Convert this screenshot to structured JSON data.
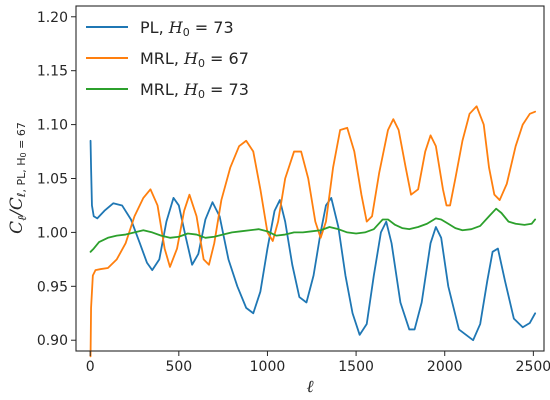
{
  "chart_data": {
    "type": "line",
    "title": "",
    "xlabel": "ℓ",
    "ylabel_main": "C",
    "ylabel_sub_l": "ℓ",
    "ylabel_sub_ref": "ℓ, PL, H",
    "ylabel_sub_ref_idx": "0",
    "ylabel_sub_ref_val": " = 67",
    "xlim": [
      -80,
      2560
    ],
    "ylim": [
      0.89,
      1.21
    ],
    "xticks": [
      0,
      500,
      1000,
      1500,
      2000,
      2500
    ],
    "yticks": [
      0.9,
      0.95,
      1.0,
      1.05,
      1.1,
      1.15,
      1.2
    ],
    "ytick_labels": [
      "0.90",
      "0.95",
      "1.00",
      "1.05",
      "1.10",
      "1.15",
      "1.20"
    ],
    "legend_position": "top-left",
    "grid": false,
    "series": [
      {
        "name_prefix": "PL, ",
        "name_var": "H",
        "name_sub": "0",
        "name_suffix": " = 73",
        "color": "#1f77b4",
        "points": [
          [
            2,
            1.085
          ],
          [
            5,
            1.06
          ],
          [
            10,
            1.025
          ],
          [
            20,
            1.015
          ],
          [
            40,
            1.013
          ],
          [
            80,
            1.02
          ],
          [
            130,
            1.027
          ],
          [
            180,
            1.025
          ],
          [
            230,
            1.012
          ],
          [
            280,
            0.99
          ],
          [
            320,
            0.972
          ],
          [
            350,
            0.965
          ],
          [
            390,
            0.975
          ],
          [
            430,
            1.01
          ],
          [
            470,
            1.032
          ],
          [
            500,
            1.025
          ],
          [
            540,
            0.995
          ],
          [
            575,
            0.97
          ],
          [
            610,
            0.98
          ],
          [
            650,
            1.012
          ],
          [
            690,
            1.028
          ],
          [
            730,
            1.015
          ],
          [
            780,
            0.975
          ],
          [
            830,
            0.95
          ],
          [
            880,
            0.93
          ],
          [
            920,
            0.925
          ],
          [
            960,
            0.945
          ],
          [
            1000,
            0.985
          ],
          [
            1040,
            1.02
          ],
          [
            1070,
            1.03
          ],
          [
            1100,
            1.01
          ],
          [
            1140,
            0.97
          ],
          [
            1180,
            0.94
          ],
          [
            1220,
            0.935
          ],
          [
            1260,
            0.96
          ],
          [
            1300,
            1.0
          ],
          [
            1330,
            1.025
          ],
          [
            1360,
            1.032
          ],
          [
            1400,
            1.005
          ],
          [
            1440,
            0.96
          ],
          [
            1480,
            0.925
          ],
          [
            1520,
            0.905
          ],
          [
            1560,
            0.915
          ],
          [
            1600,
            0.96
          ],
          [
            1640,
            1.0
          ],
          [
            1670,
            1.01
          ],
          [
            1700,
            0.99
          ],
          [
            1750,
            0.935
          ],
          [
            1800,
            0.91
          ],
          [
            1830,
            0.91
          ],
          [
            1870,
            0.935
          ],
          [
            1920,
            0.99
          ],
          [
            1950,
            1.005
          ],
          [
            1980,
            0.995
          ],
          [
            2020,
            0.95
          ],
          [
            2080,
            0.91
          ],
          [
            2120,
            0.905
          ],
          [
            2160,
            0.9
          ],
          [
            2200,
            0.915
          ],
          [
            2240,
            0.955
          ],
          [
            2270,
            0.982
          ],
          [
            2300,
            0.985
          ],
          [
            2340,
            0.955
          ],
          [
            2390,
            0.92
          ],
          [
            2440,
            0.912
          ],
          [
            2480,
            0.916
          ],
          [
            2510,
            0.925
          ]
        ]
      },
      {
        "name_prefix": "MRL, ",
        "name_var": "H",
        "name_sub": "0",
        "name_suffix": " = 67",
        "color": "#ff7f0e",
        "points": [
          [
            2,
            0.885
          ],
          [
            5,
            0.93
          ],
          [
            15,
            0.96
          ],
          [
            30,
            0.965
          ],
          [
            60,
            0.966
          ],
          [
            100,
            0.967
          ],
          [
            150,
            0.975
          ],
          [
            200,
            0.99
          ],
          [
            250,
            1.015
          ],
          [
            300,
            1.032
          ],
          [
            340,
            1.04
          ],
          [
            380,
            1.025
          ],
          [
            420,
            0.985
          ],
          [
            450,
            0.968
          ],
          [
            490,
            0.985
          ],
          [
            530,
            1.02
          ],
          [
            560,
            1.035
          ],
          [
            600,
            1.015
          ],
          [
            640,
            0.975
          ],
          [
            670,
            0.97
          ],
          [
            700,
            0.99
          ],
          [
            740,
            1.03
          ],
          [
            790,
            1.06
          ],
          [
            840,
            1.08
          ],
          [
            880,
            1.085
          ],
          [
            920,
            1.075
          ],
          [
            960,
            1.04
          ],
          [
            1000,
            1.0
          ],
          [
            1030,
            0.992
          ],
          [
            1060,
            1.01
          ],
          [
            1100,
            1.05
          ],
          [
            1150,
            1.075
          ],
          [
            1190,
            1.075
          ],
          [
            1230,
            1.05
          ],
          [
            1270,
            1.01
          ],
          [
            1300,
            0.995
          ],
          [
            1330,
            1.01
          ],
          [
            1370,
            1.06
          ],
          [
            1410,
            1.095
          ],
          [
            1450,
            1.097
          ],
          [
            1490,
            1.075
          ],
          [
            1530,
            1.035
          ],
          [
            1560,
            1.01
          ],
          [
            1590,
            1.015
          ],
          [
            1630,
            1.055
          ],
          [
            1680,
            1.095
          ],
          [
            1710,
            1.105
          ],
          [
            1740,
            1.095
          ],
          [
            1780,
            1.06
          ],
          [
            1810,
            1.035
          ],
          [
            1850,
            1.04
          ],
          [
            1890,
            1.075
          ],
          [
            1920,
            1.09
          ],
          [
            1950,
            1.08
          ],
          [
            1990,
            1.04
          ],
          [
            2010,
            1.025
          ],
          [
            2030,
            1.025
          ],
          [
            2060,
            1.05
          ],
          [
            2100,
            1.085
          ],
          [
            2140,
            1.11
          ],
          [
            2180,
            1.117
          ],
          [
            2220,
            1.1
          ],
          [
            2250,
            1.06
          ],
          [
            2280,
            1.035
          ],
          [
            2310,
            1.03
          ],
          [
            2350,
            1.045
          ],
          [
            2400,
            1.08
          ],
          [
            2440,
            1.1
          ],
          [
            2480,
            1.11
          ],
          [
            2510,
            1.112
          ]
        ]
      },
      {
        "name_prefix": "MRL, ",
        "name_var": "H",
        "name_sub": "0",
        "name_suffix": " = 73",
        "color": "#2ca02c",
        "points": [
          [
            2,
            0.982
          ],
          [
            20,
            0.985
          ],
          [
            50,
            0.991
          ],
          [
            100,
            0.995
          ],
          [
            150,
            0.997
          ],
          [
            200,
            0.998
          ],
          [
            250,
            1.0
          ],
          [
            300,
            1.002
          ],
          [
            350,
            1.0
          ],
          [
            400,
            0.997
          ],
          [
            450,
            0.995
          ],
          [
            500,
            0.996
          ],
          [
            550,
            0.999
          ],
          [
            600,
            0.998
          ],
          [
            650,
            0.995
          ],
          [
            700,
            0.996
          ],
          [
            750,
            0.998
          ],
          [
            800,
            1.0
          ],
          [
            850,
            1.001
          ],
          [
            900,
            1.002
          ],
          [
            950,
            1.003
          ],
          [
            1000,
            1.001
          ],
          [
            1050,
            0.997
          ],
          [
            1100,
            0.998
          ],
          [
            1150,
            1.0
          ],
          [
            1200,
            1.0
          ],
          [
            1250,
            1.001
          ],
          [
            1300,
            1.002
          ],
          [
            1350,
            1.005
          ],
          [
            1400,
            1.003
          ],
          [
            1450,
            1.0
          ],
          [
            1500,
            0.999
          ],
          [
            1550,
            1.0
          ],
          [
            1600,
            1.003
          ],
          [
            1650,
            1.012
          ],
          [
            1680,
            1.012
          ],
          [
            1720,
            1.007
          ],
          [
            1760,
            1.004
          ],
          [
            1800,
            1.003
          ],
          [
            1850,
            1.005
          ],
          [
            1900,
            1.008
          ],
          [
            1950,
            1.013
          ],
          [
            1980,
            1.012
          ],
          [
            2020,
            1.008
          ],
          [
            2060,
            1.004
          ],
          [
            2100,
            1.002
          ],
          [
            2150,
            1.003
          ],
          [
            2200,
            1.006
          ],
          [
            2250,
            1.015
          ],
          [
            2290,
            1.022
          ],
          [
            2320,
            1.018
          ],
          [
            2360,
            1.01
          ],
          [
            2400,
            1.008
          ],
          [
            2450,
            1.007
          ],
          [
            2490,
            1.008
          ],
          [
            2510,
            1.012
          ]
        ]
      }
    ]
  }
}
